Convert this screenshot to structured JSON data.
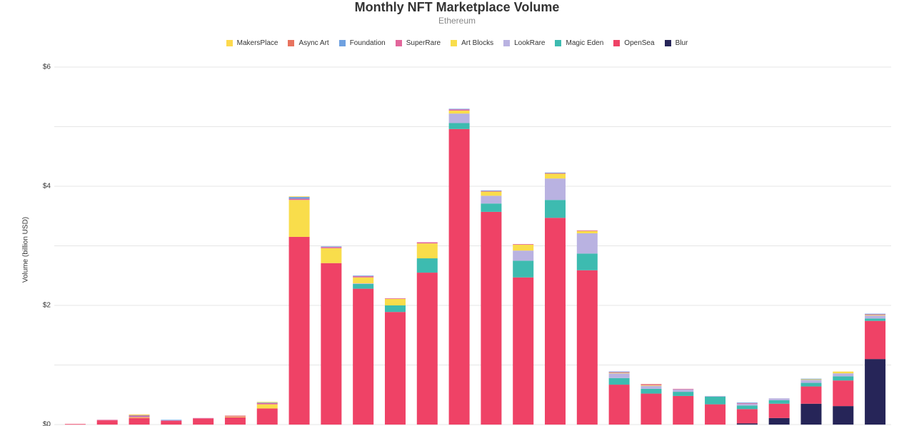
{
  "chart_data": {
    "type": "stacked_bar",
    "title": "Monthly NFT Marketplace Volume",
    "subtitle": "Ethereum",
    "y_label": "Volume (billion USD)",
    "categories": [
      null,
      null,
      null,
      null,
      null,
      null,
      null,
      null,
      null,
      null,
      null,
      null,
      null,
      null,
      null,
      null,
      null,
      null,
      null,
      null,
      null,
      null,
      null,
      null,
      null,
      null
    ],
    "ylim": [
      0,
      6
    ],
    "yticks": [
      {
        "value": 0,
        "label": "$0"
      },
      {
        "value": 2,
        "label": "$2"
      },
      {
        "value": 4,
        "label": "$4"
      },
      {
        "value": 6,
        "label": "$6"
      }
    ],
    "minor_yticks": [
      1,
      3,
      5
    ],
    "grid": true,
    "series": [
      {
        "name": "MakersPlace",
        "color": "#fdd94e",
        "values": [
          0,
          0,
          0.01,
          0,
          0,
          0,
          0.01,
          0.01,
          0,
          0,
          0,
          0,
          0,
          0,
          0,
          0,
          0,
          0,
          0,
          0,
          0,
          0,
          0,
          0,
          0,
          0
        ]
      },
      {
        "name": "Async Art",
        "color": "#e8735f",
        "values": [
          0,
          0,
          0.01,
          0,
          0,
          0.01,
          0,
          0,
          0,
          0,
          0,
          0,
          0,
          0,
          0,
          0,
          0,
          0,
          0.01,
          0,
          0,
          0,
          0,
          0,
          0,
          0
        ]
      },
      {
        "name": "Foundation",
        "color": "#6fa1e0",
        "values": [
          0,
          0,
          0.01,
          0.01,
          0,
          0,
          0.01,
          0.03,
          0.01,
          0.01,
          0,
          0,
          0.01,
          0.01,
          0,
          0.01,
          0,
          0.01,
          0,
          0,
          0,
          0.01,
          0,
          0.01,
          0,
          0.01
        ]
      },
      {
        "name": "SuperRare",
        "color": "#e2669b",
        "values": [
          0,
          0.01,
          0.02,
          0.01,
          0.01,
          0.01,
          0.02,
          0.02,
          0.02,
          0.02,
          0.01,
          0.02,
          0.02,
          0.01,
          0.01,
          0.01,
          0.01,
          0.01,
          0.01,
          0.01,
          0,
          0.01,
          0,
          0,
          0,
          0.01
        ]
      },
      {
        "name": "Art Blocks",
        "color": "#f9dd4b",
        "values": [
          0,
          0,
          0.01,
          0,
          0,
          0.01,
          0.07,
          0.62,
          0.25,
          0.1,
          0.11,
          0.25,
          0.05,
          0.07,
          0.1,
          0.08,
          0.04,
          0.01,
          0.01,
          0,
          0,
          0,
          0,
          0.01,
          0.03,
          0.01
        ]
      },
      {
        "name": "LookRare",
        "color": "#b9b2e1",
        "values": [
          0,
          0,
          0,
          0,
          0,
          0,
          0,
          0,
          0,
          0.01,
          0,
          0,
          0.16,
          0.13,
          0.17,
          0.36,
          0.34,
          0.08,
          0.05,
          0.04,
          0.01,
          0.03,
          0.03,
          0.05,
          0.05,
          0.05
        ]
      },
      {
        "name": "Magic Eden",
        "color": "#3dbbb0",
        "values": [
          0,
          0,
          0,
          0,
          0,
          0,
          0,
          0,
          0,
          0.08,
          0.11,
          0.24,
          0.1,
          0.14,
          0.28,
          0.3,
          0.28,
          0.11,
          0.08,
          0.07,
          0.13,
          0.06,
          0.06,
          0.06,
          0.07,
          0.04
        ]
      },
      {
        "name": "OpenSea",
        "color": "#ef4266",
        "values": [
          0.01,
          0.07,
          0.11,
          0.06,
          0.1,
          0.12,
          0.27,
          3.15,
          2.71,
          2.28,
          1.89,
          2.55,
          4.96,
          3.57,
          2.47,
          3.47,
          2.59,
          0.67,
          0.52,
          0.48,
          0.34,
          0.24,
          0.24,
          0.29,
          0.43,
          0.64
        ]
      },
      {
        "name": "Blur",
        "color": "#262558",
        "values": [
          0,
          0,
          0,
          0,
          0,
          0,
          0,
          0,
          0,
          0,
          0,
          0,
          0,
          0,
          0,
          0,
          0,
          0,
          0,
          0,
          0,
          0.02,
          0.11,
          0.35,
          0.31,
          1.1
        ]
      }
    ]
  }
}
